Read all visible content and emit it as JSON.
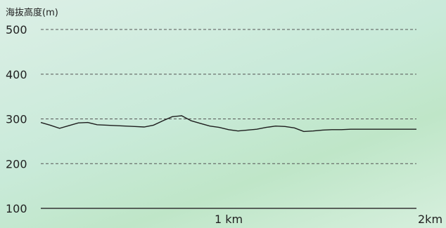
{
  "chart_data": {
    "type": "line",
    "ylabel": "海抜高度(m)",
    "ylim": [
      100,
      500
    ],
    "xlim": [
      0,
      2
    ],
    "y_ticks": [
      {
        "value": 500,
        "label": "500"
      },
      {
        "value": 400,
        "label": "400"
      },
      {
        "value": 300,
        "label": "300"
      },
      {
        "value": 200,
        "label": "200"
      },
      {
        "value": 100,
        "label": "100"
      }
    ],
    "x_ticks": [
      {
        "value": 1,
        "label": "1 km"
      },
      {
        "value": 2,
        "label": "2km"
      }
    ],
    "grid": true,
    "series": [
      {
        "color": "#1d1d1d",
        "x": [
          0.0,
          0.05,
          0.1,
          0.15,
          0.2,
          0.25,
          0.3,
          0.35,
          0.4,
          0.45,
          0.5,
          0.55,
          0.6,
          0.65,
          0.7,
          0.75,
          0.8,
          0.85,
          0.9,
          0.95,
          1.0,
          1.05,
          1.1,
          1.15,
          1.2,
          1.25,
          1.3,
          1.35,
          1.4,
          1.45,
          1.5,
          1.55,
          1.6,
          1.65,
          1.7,
          1.75,
          1.8,
          1.85,
          1.9,
          1.95,
          2.0
        ],
        "values": [
          292,
          286,
          279,
          285,
          291,
          292,
          287,
          286,
          285,
          284,
          283,
          282,
          286,
          296,
          305,
          307,
          296,
          290,
          284,
          281,
          276,
          273,
          275,
          277,
          281,
          284,
          283,
          280,
          272,
          273,
          275,
          276,
          276,
          277,
          277,
          277,
          277,
          277,
          277,
          277,
          277
        ]
      }
    ]
  }
}
